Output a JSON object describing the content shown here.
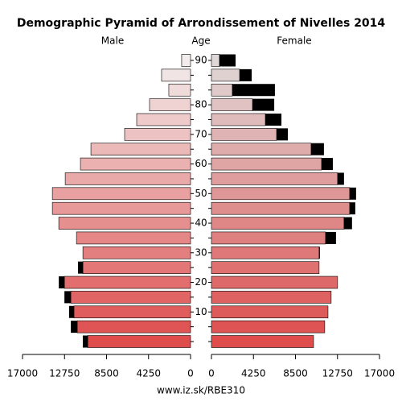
{
  "chart_data": {
    "type": "pyramid",
    "title": "Demographic Pyramid of Arrondissement of Nivelles 2014",
    "axis_label": "Age",
    "footer": "www.iz.sk/RBE310",
    "categories": [
      null,
      null,
      "10",
      null,
      "20",
      null,
      "30",
      null,
      "40",
      null,
      "50",
      null,
      "60",
      null,
      "70",
      null,
      "80",
      null,
      null,
      "90"
    ],
    "series": [
      {
        "name": "Male",
        "color_low": "#de4c4c",
        "color_high": "#f2ecec",
        "values": [
          10400,
          11460,
          11790,
          12110,
          12760,
          10890,
          10890,
          11540,
          13330,
          13980,
          13980,
          12680,
          11140,
          10080,
          6670,
          5450,
          4150,
          2200,
          2930,
          900
        ],
        "extra": [
          500,
          650,
          500,
          650,
          570,
          500,
          0,
          0,
          0,
          0,
          0,
          0,
          0,
          0,
          0,
          0,
          0,
          0,
          0,
          0
        ]
      },
      {
        "name": "Female",
        "color_low": "#de4c4c",
        "color_high": "#e0d8d8",
        "values": [
          10330,
          11460,
          11790,
          12110,
          12760,
          10890,
          10890,
          11540,
          13410,
          13980,
          13980,
          12760,
          11140,
          10080,
          6590,
          5450,
          4150,
          2110,
          2850,
          810
        ],
        "extra": [
          0,
          0,
          0,
          0,
          0,
          0,
          80,
          1060,
          810,
          570,
          650,
          650,
          1140,
          1300,
          1140,
          1630,
          2200,
          4310,
          1220,
          1630
        ]
      }
    ],
    "extra_color": "#000000",
    "xlim": [
      0,
      17000
    ],
    "xticks": [
      0,
      4250,
      8500,
      12750,
      17000
    ]
  }
}
